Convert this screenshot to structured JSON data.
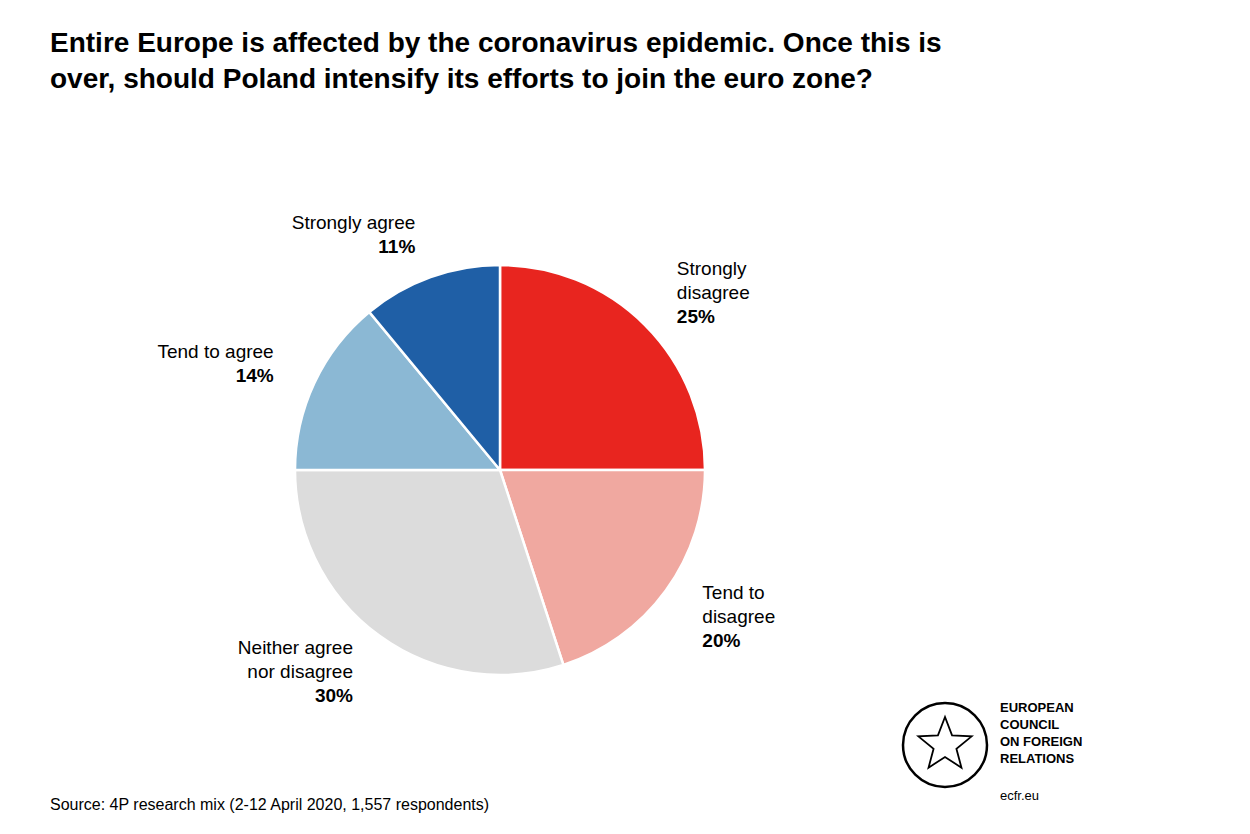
{
  "chart_data": {
    "type": "pie",
    "title": "Entire Europe is affected by the coronavirus epidemic. Once this is\nover, should Poland intensify its efforts to join the euro zone?",
    "categories": [
      "Strongly\ndisagree",
      "Tend to\ndisagree",
      "Neither agree\nnor disagree",
      "Tend to agree",
      "Strongly agree"
    ],
    "values": [
      25,
      20,
      30,
      14,
      11
    ],
    "value_labels": [
      "25%",
      "20%",
      "30%",
      "14%",
      "11%"
    ],
    "colors": [
      "#e8251f",
      "#f0a8a0",
      "#dcdcdc",
      "#8bb8d4",
      "#1f5fa6"
    ],
    "data_labels": true,
    "annotations": [
      "Source: 4P research mix (2-12 April 2020, 1,557 respondents)",
      "EUROPEAN\nCOUNCIL\nON FOREIGN\nRELATIONS",
      "ecfr.eu"
    ]
  }
}
